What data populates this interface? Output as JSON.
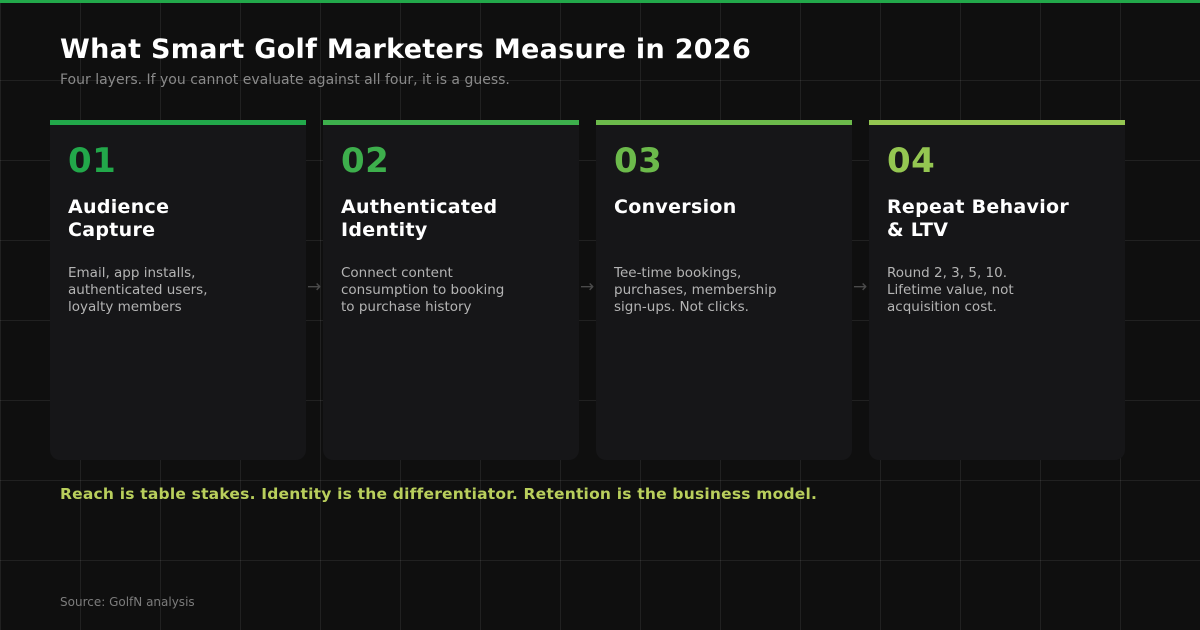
{
  "header": {
    "title": "What Smart Golf Marketers Measure in 2026",
    "subtitle": "Four layers. If you cannot evaluate against all four, it is a guess."
  },
  "colors": {
    "accent_top": "#22a84a",
    "layer_1": "#22a84a",
    "layer_2": "#3daf4c",
    "layer_3": "#6cba4b",
    "layer_4": "#94c651",
    "tagline": "#b9cf5c"
  },
  "layers": [
    {
      "number": "01",
      "title": "Audience Capture",
      "description": "Email, app installs, authenticated users, loyalty members"
    },
    {
      "number": "02",
      "title": "Authenticated Identity",
      "description": "Connect content consumption to booking to purchase history"
    },
    {
      "number": "03",
      "title": "Conversion",
      "description": "Tee-time bookings, purchases, membership sign-ups. Not clicks."
    },
    {
      "number": "04",
      "title": "Repeat Behavior & LTV",
      "description": "Round 2, 3, 5, 10. Lifetime value, not acquisition cost."
    }
  ],
  "arrow_glyph": "→",
  "tagline": "Reach is table stakes. Identity is the differentiator. Retention is the business model.",
  "source": "Source: GolfN analysis"
}
